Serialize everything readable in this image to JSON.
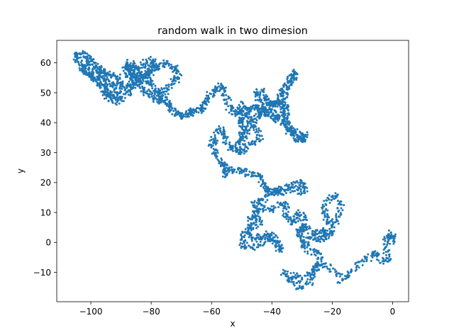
{
  "chart_data": {
    "type": "scatter",
    "title": "random walk in two dimesion",
    "xlabel": "x",
    "ylabel": "y",
    "xlim": [
      -111.3,
      5.3
    ],
    "ylim": [
      -19.8,
      67.5
    ],
    "xticks": [
      -100,
      -80,
      -60,
      -40,
      -20,
      0
    ],
    "xtick_labels": [
      "−100",
      "−80",
      "−60",
      "−40",
      "−20",
      "0"
    ],
    "yticks": [
      -10,
      0,
      10,
      20,
      30,
      40,
      50,
      60
    ],
    "ytick_labels": [
      "−10",
      "0",
      "10",
      "20",
      "30",
      "40",
      "50",
      "60"
    ],
    "grid": false,
    "marker_color": "#1f77b4",
    "path": [
      [
        0,
        0
      ],
      [
        0,
        2
      ],
      [
        -1,
        3
      ],
      [
        -2,
        1
      ],
      [
        -2,
        -3
      ],
      [
        -1,
        -6
      ],
      [
        -4,
        -6
      ],
      [
        -6,
        -3
      ],
      [
        -9,
        -6
      ],
      [
        -12,
        -8
      ],
      [
        -15,
        -11
      ],
      [
        -17,
        -13
      ],
      [
        -20,
        -9
      ],
      [
        -23,
        -7
      ],
      [
        -25,
        -8
      ],
      [
        -27,
        -10
      ],
      [
        -30,
        -12
      ],
      [
        -33,
        -11
      ],
      [
        -36,
        -10
      ],
      [
        -34,
        -13
      ],
      [
        -31,
        -15
      ],
      [
        -28,
        -14
      ],
      [
        -26,
        -10
      ],
      [
        -24,
        -6
      ],
      [
        -25,
        -3
      ],
      [
        -28,
        -3
      ],
      [
        -30,
        1
      ],
      [
        -31,
        4
      ],
      [
        -29,
        6
      ],
      [
        -26,
        3
      ],
      [
        -24,
        4
      ],
      [
        -22,
        3
      ],
      [
        -21,
        2
      ],
      [
        -20,
        6
      ],
      [
        -18,
        8
      ],
      [
        -17,
        12
      ],
      [
        -19,
        16
      ],
      [
        -21,
        14
      ],
      [
        -23,
        11
      ],
      [
        -22,
        8
      ],
      [
        -21,
        6
      ],
      [
        -22,
        2
      ],
      [
        -24,
        1
      ],
      [
        -27,
        2
      ],
      [
        -29,
        -1
      ],
      [
        -30,
        3
      ],
      [
        -29,
        7
      ],
      [
        -31,
        10
      ],
      [
        -32,
        8
      ],
      [
        -34,
        7
      ],
      [
        -36,
        9
      ],
      [
        -35,
        12
      ],
      [
        -37,
        13
      ],
      [
        -40,
        11
      ],
      [
        -43,
        12
      ],
      [
        -45,
        9
      ],
      [
        -44,
        7
      ],
      [
        -47,
        5
      ],
      [
        -49,
        3
      ],
      [
        -50,
        0
      ],
      [
        -48,
        -2
      ],
      [
        -45,
        -1
      ],
      [
        -42,
        1
      ],
      [
        -40,
        2
      ],
      [
        -38,
        -1
      ],
      [
        -37,
        -3
      ],
      [
        -39,
        1
      ],
      [
        -41,
        3
      ],
      [
        -44,
        2
      ],
      [
        -46,
        1
      ],
      [
        -48,
        4
      ],
      [
        -47,
        8
      ],
      [
        -45,
        11
      ],
      [
        -46,
        13
      ],
      [
        -43,
        14
      ],
      [
        -40,
        16
      ],
      [
        -38,
        17
      ],
      [
        -36,
        18
      ],
      [
        -33,
        19
      ],
      [
        -30,
        20
      ],
      [
        -29,
        18
      ],
      [
        -31,
        17
      ],
      [
        -34,
        18
      ],
      [
        -37,
        17
      ],
      [
        -39,
        17
      ],
      [
        -41,
        17
      ],
      [
        -42,
        18
      ],
      [
        -44,
        21
      ],
      [
        -45,
        23
      ],
      [
        -48,
        23
      ],
      [
        -50,
        24
      ],
      [
        -53,
        24
      ],
      [
        -56,
        25
      ],
      [
        -55,
        22
      ],
      [
        -56,
        26
      ],
      [
        -58,
        28
      ],
      [
        -59,
        31
      ],
      [
        -60,
        33
      ],
      [
        -59,
        35
      ],
      [
        -57,
        38
      ],
      [
        -56,
        36
      ],
      [
        -55,
        34
      ],
      [
        -53,
        31
      ],
      [
        -51,
        33
      ],
      [
        -50,
        36
      ],
      [
        -49,
        39
      ],
      [
        -51,
        40
      ],
      [
        -50,
        42
      ],
      [
        -48,
        43
      ],
      [
        -47,
        41
      ],
      [
        -48,
        38
      ],
      [
        -49,
        36
      ],
      [
        -50,
        33
      ],
      [
        -51,
        30
      ],
      [
        -49,
        31
      ],
      [
        -46,
        33
      ],
      [
        -44,
        35
      ],
      [
        -45,
        38
      ],
      [
        -47,
        40
      ],
      [
        -45,
        42
      ],
      [
        -43,
        44
      ],
      [
        -41,
        43
      ],
      [
        -39,
        41
      ],
      [
        -37,
        42
      ],
      [
        -36,
        44
      ],
      [
        -37,
        47
      ],
      [
        -36,
        49
      ],
      [
        -35,
        52
      ],
      [
        -34,
        55
      ],
      [
        -33,
        57
      ],
      [
        -32,
        55
      ],
      [
        -34,
        53
      ],
      [
        -36,
        51
      ],
      [
        -37,
        49
      ],
      [
        -38,
        47
      ],
      [
        -39,
        46
      ],
      [
        -41,
        47
      ],
      [
        -42,
        49
      ],
      [
        -44,
        51
      ],
      [
        -45,
        49
      ],
      [
        -44,
        46
      ],
      [
        -42,
        45
      ],
      [
        -40,
        46
      ],
      [
        -38,
        47
      ],
      [
        -36,
        46
      ],
      [
        -35,
        44
      ],
      [
        -36,
        42
      ],
      [
        -35,
        40
      ],
      [
        -34,
        38
      ],
      [
        -33,
        37
      ],
      [
        -31,
        36
      ],
      [
        -30,
        35
      ],
      [
        -29,
        36
      ],
      [
        -30,
        34
      ],
      [
        -32,
        35
      ],
      [
        -34,
        37
      ],
      [
        -36,
        40
      ],
      [
        -38,
        42
      ],
      [
        -40,
        44
      ],
      [
        -42,
        43
      ],
      [
        -44,
        44
      ],
      [
        -46,
        45
      ],
      [
        -48,
        44
      ],
      [
        -50,
        46
      ],
      [
        -51,
        44
      ],
      [
        -52,
        43
      ],
      [
        -54,
        45
      ],
      [
        -55,
        48
      ],
      [
        -56,
        51
      ],
      [
        -57,
        52
      ],
      [
        -59,
        50
      ],
      [
        -61,
        49
      ],
      [
        -62,
        47
      ],
      [
        -63,
        45
      ],
      [
        -64,
        44
      ],
      [
        -66,
        43
      ],
      [
        -67,
        44
      ],
      [
        -68,
        43
      ],
      [
        -70,
        42
      ],
      [
        -71,
        43
      ],
      [
        -73,
        44
      ],
      [
        -74,
        46
      ],
      [
        -75,
        47
      ],
      [
        -76,
        49
      ],
      [
        -78,
        50
      ],
      [
        -79,
        52
      ],
      [
        -81,
        54
      ],
      [
        -83,
        55
      ],
      [
        -85,
        57
      ],
      [
        -87,
        59
      ],
      [
        -86,
        56
      ],
      [
        -84,
        53
      ],
      [
        -83,
        51
      ],
      [
        -81,
        50
      ],
      [
        -79,
        48
      ],
      [
        -77,
        47
      ],
      [
        -76,
        50
      ],
      [
        -74,
        52
      ],
      [
        -72,
        54
      ],
      [
        -71,
        56
      ],
      [
        -72,
        58
      ],
      [
        -74,
        59
      ],
      [
        -76,
        60
      ],
      [
        -78,
        59
      ],
      [
        -80,
        57
      ],
      [
        -82,
        55
      ],
      [
        -84,
        56
      ],
      [
        -86,
        54
      ],
      [
        -88,
        52
      ],
      [
        -90,
        51
      ],
      [
        -92,
        50
      ],
      [
        -93,
        49
      ],
      [
        -95,
        51
      ],
      [
        -96,
        53
      ],
      [
        -98,
        55
      ],
      [
        -100,
        56
      ],
      [
        -102,
        57
      ],
      [
        -103,
        59
      ],
      [
        -104,
        61
      ],
      [
        -105,
        62
      ],
      [
        -103,
        63
      ],
      [
        -101,
        62
      ],
      [
        -99,
        60
      ],
      [
        -97,
        58
      ],
      [
        -95,
        57
      ],
      [
        -93,
        56
      ],
      [
        -91,
        55
      ],
      [
        -90,
        53
      ],
      [
        -92,
        52
      ],
      [
        -94,
        53
      ],
      [
        -96,
        55
      ],
      [
        -97,
        57
      ],
      [
        -99,
        58
      ],
      [
        -101,
        60
      ],
      [
        -102,
        58
      ],
      [
        -100,
        56
      ],
      [
        -98,
        54
      ],
      [
        -96,
        52
      ],
      [
        -95,
        50
      ],
      [
        -94,
        48
      ],
      [
        -92,
        47
      ],
      [
        -90,
        48
      ],
      [
        -88,
        50
      ],
      [
        -86,
        52
      ],
      [
        -84,
        54
      ],
      [
        -82,
        56
      ],
      [
        -80,
        58
      ],
      [
        -79,
        60
      ],
      [
        -81,
        61
      ],
      [
        -83,
        59
      ],
      [
        -85,
        57
      ],
      [
        -87,
        55
      ],
      [
        -88,
        57
      ],
      [
        -89,
        59
      ],
      [
        -87,
        60
      ],
      [
        -85,
        59
      ]
    ]
  }
}
